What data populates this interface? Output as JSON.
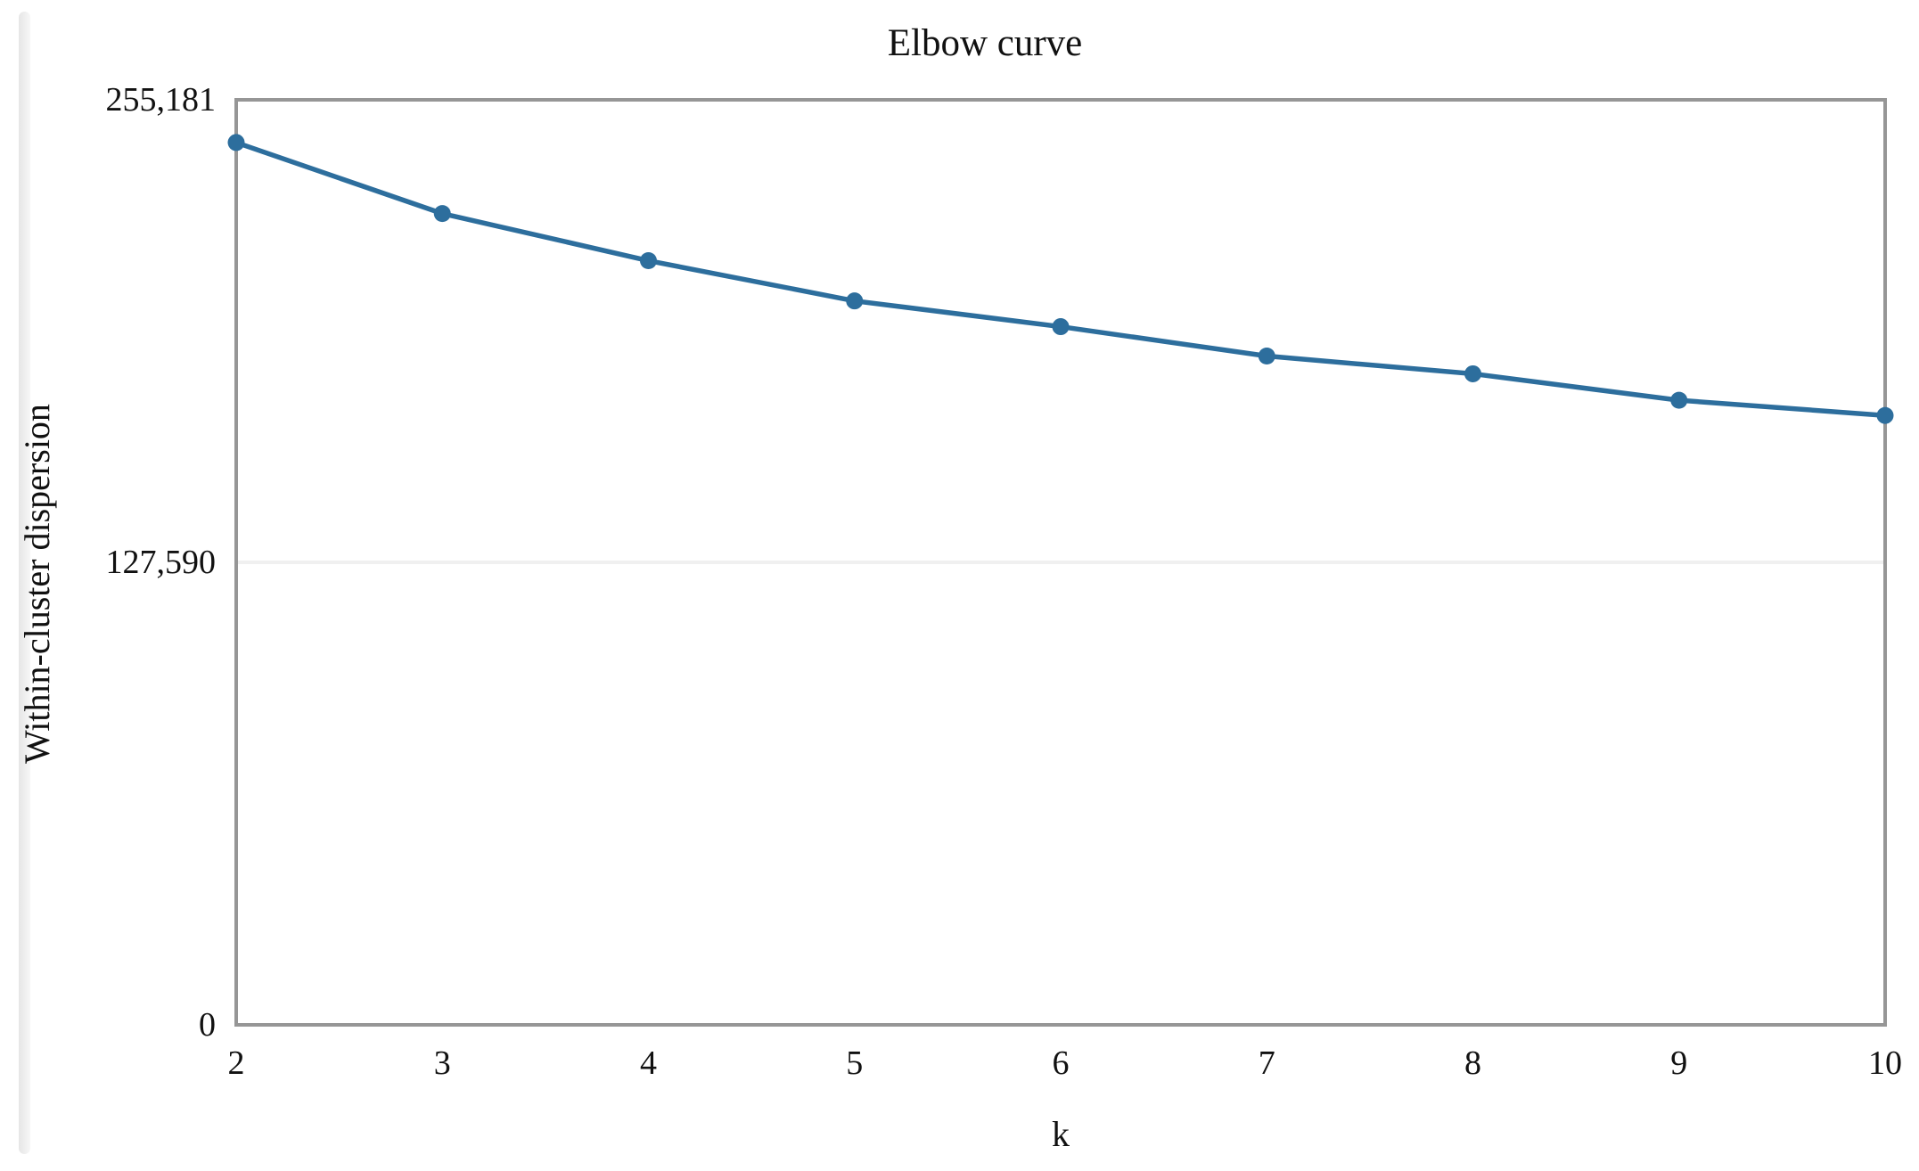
{
  "page": {
    "background": "#ffffff"
  },
  "chart_data": {
    "type": "line",
    "title": "Elbow curve",
    "xlabel": "k",
    "ylabel": "Within-cluster dispersion",
    "x": [
      2,
      3,
      4,
      5,
      6,
      7,
      8,
      9,
      10
    ],
    "series": [
      {
        "name": "within-cluster-dispersion",
        "values": [
          243400,
          223800,
          210800,
          199700,
          192600,
          184500,
          179600,
          172300,
          168100
        ]
      }
    ],
    "x_tick_labels": [
      "2",
      "3",
      "4",
      "5",
      "6",
      "7",
      "8",
      "9",
      "10"
    ],
    "y_ticks": [
      {
        "value": 0,
        "label": "0"
      },
      {
        "value": 127590,
        "label": "127,590"
      },
      {
        "value": 255181,
        "label": "255,181"
      }
    ],
    "xlim": [
      2,
      10
    ],
    "ylim": [
      0,
      255181
    ],
    "grid_values": [
      127590
    ],
    "legend_position": "none",
    "line_color": "#2d6e9d",
    "marker_color": "#2d6e9d",
    "plot_border_color": "#969696",
    "gridline_color": "#f0f0f0"
  }
}
